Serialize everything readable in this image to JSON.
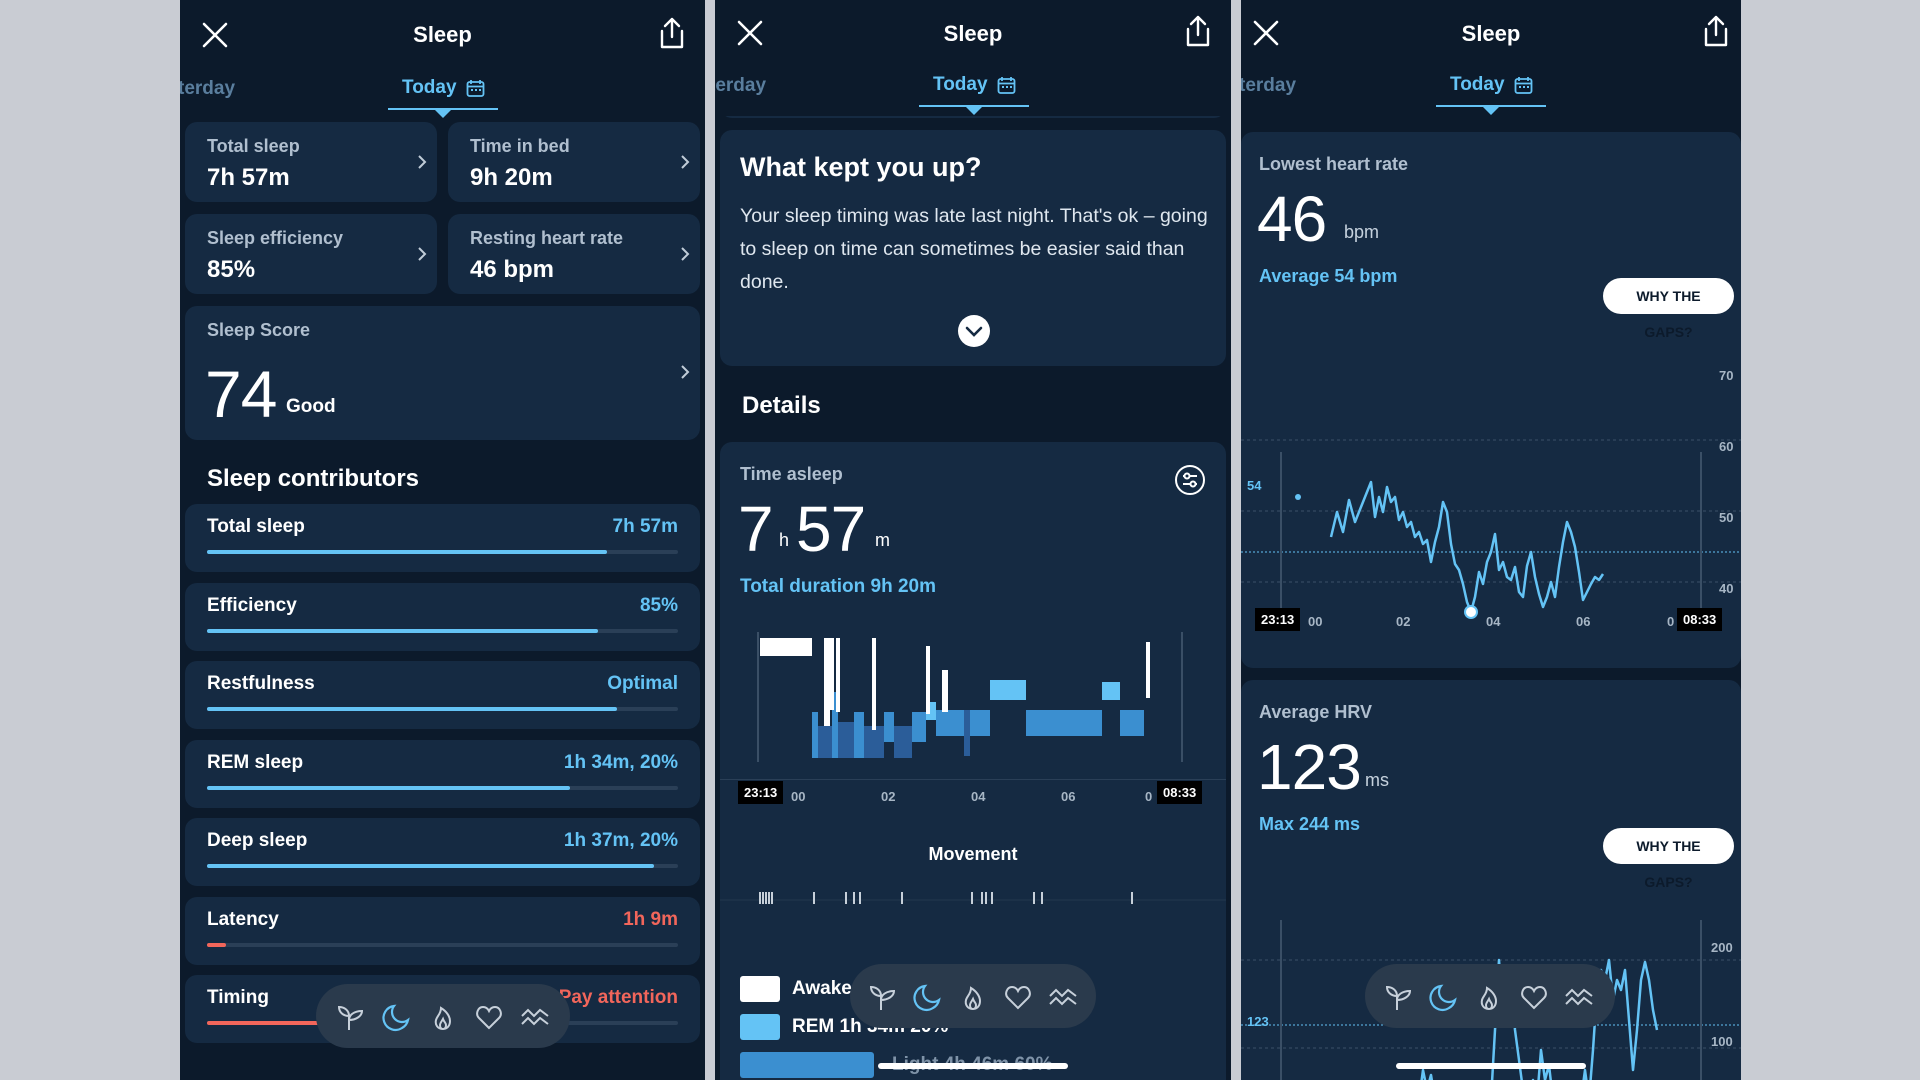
{
  "header": {
    "title": "Sleep",
    "tab_prev": "terday",
    "tab_today": "Today"
  },
  "panel1": {
    "metrics": [
      {
        "label": "Total sleep",
        "value": "7h 57m"
      },
      {
        "label": "Time in bed",
        "value": "9h 20m"
      },
      {
        "label": "Sleep efficiency",
        "value": "85%"
      },
      {
        "label": "Resting heart rate",
        "value": "46 bpm"
      }
    ],
    "score": {
      "label": "Sleep Score",
      "value": "74",
      "rating": "Good"
    },
    "contributors_title": "Sleep contributors",
    "contributors": [
      {
        "name": "Total sleep",
        "value": "7h 57m",
        "level": 0.85,
        "status": "ok"
      },
      {
        "name": "Efficiency",
        "value": "85%",
        "level": 0.83,
        "status": "ok"
      },
      {
        "name": "Restfulness",
        "value": "Optimal",
        "level": 0.87,
        "status": "ok"
      },
      {
        "name": "REM sleep",
        "value": "1h 34m, 20%",
        "level": 0.77,
        "status": "ok"
      },
      {
        "name": "Deep sleep",
        "value": "1h 37m, 20%",
        "level": 0.95,
        "status": "ok"
      },
      {
        "name": "Latency",
        "value": "1h 9m",
        "level": 0.04,
        "status": "warn"
      },
      {
        "name": "Timing",
        "value": "Pay attention",
        "level": 0.3,
        "status": "warn"
      }
    ]
  },
  "panel2": {
    "kept_title": "What kept you up?",
    "kept_body": "Your sleep timing was late last night. That's ok – going to sleep on time can sometimes be easier said than done.",
    "details_title": "Details",
    "time_asleep_label": "Time asleep",
    "hours": "7",
    "hours_unit": "h",
    "minutes": "57",
    "minutes_unit": "m",
    "total_duration": "Total duration 9h 20m",
    "start_time": "23:13",
    "end_time": "08:33",
    "ticks": [
      "00",
      "02",
      "04",
      "06",
      "0"
    ],
    "movement_title": "Movement",
    "legend": [
      {
        "label": "Awake",
        "color": "#ffffff"
      },
      {
        "label": "REM 1h 34m 20%",
        "color": "#64c3f5"
      },
      {
        "label": "Light 4h 46m 60%",
        "color": "#3b8fd0"
      }
    ]
  },
  "panel3": {
    "hr_label": "Lowest heart rate",
    "hr_value": "46",
    "hr_unit": "bpm",
    "hr_avg": "Average 54 bpm",
    "gaps_button": "WHY THE GAPS?",
    "hr_avg_marker": "54",
    "hr_yticks": [
      "70",
      "60",
      "50",
      "40"
    ],
    "start_time": "23:13",
    "end_time": "08:33",
    "ticks": [
      "00",
      "02",
      "04",
      "06",
      "0"
    ],
    "hrv_label": "Average HRV",
    "hrv_value": "123",
    "hrv_unit": "ms",
    "hrv_max": "Max 244 ms",
    "hrv_avg_marker": "123",
    "hrv_yticks": [
      "200",
      "100"
    ]
  },
  "colors": {
    "bg": "#0c1a2b",
    "card": "#152a42",
    "accent": "#64c3f5",
    "warn": "#f2665b"
  }
}
